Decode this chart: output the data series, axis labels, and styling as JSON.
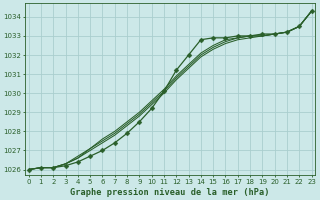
{
  "title": "Graphe pression niveau de la mer (hPa)",
  "background_color": "#cce8e8",
  "grid_color": "#aacece",
  "line_color": "#2a5f2a",
  "xlim": [
    -0.3,
    23.3
  ],
  "ylim": [
    1025.7,
    1034.7
  ],
  "yticks": [
    1026,
    1027,
    1028,
    1029,
    1030,
    1031,
    1032,
    1033,
    1034
  ],
  "xticks": [
    0,
    1,
    2,
    3,
    4,
    5,
    6,
    7,
    8,
    9,
    10,
    11,
    12,
    13,
    14,
    15,
    16,
    17,
    18,
    19,
    20,
    21,
    22,
    23
  ],
  "series": [
    [
      1026.0,
      1026.1,
      1026.1,
      1026.2,
      1026.4,
      1026.7,
      1027.0,
      1027.4,
      1027.9,
      1028.5,
      1029.2,
      1030.1,
      1031.2,
      1032.0,
      1032.8,
      1032.9,
      1032.9,
      1033.0,
      1033.0,
      1033.1,
      1033.1,
      1033.2,
      1033.5,
      1034.3
    ],
    [
      1026.0,
      1026.1,
      1026.1,
      1026.3,
      1026.6,
      1027.0,
      1027.4,
      1027.8,
      1028.3,
      1028.8,
      1029.4,
      1030.0,
      1030.7,
      1031.3,
      1031.9,
      1032.3,
      1032.6,
      1032.8,
      1032.9,
      1033.0,
      1033.1,
      1033.2,
      1033.5,
      1034.3
    ],
    [
      1026.0,
      1026.1,
      1026.1,
      1026.3,
      1026.6,
      1027.1,
      1027.5,
      1027.9,
      1028.4,
      1028.9,
      1029.5,
      1030.1,
      1030.8,
      1031.4,
      1032.0,
      1032.4,
      1032.7,
      1032.9,
      1033.0,
      1033.0,
      1033.1,
      1033.2,
      1033.5,
      1034.3
    ],
    [
      1026.0,
      1026.1,
      1026.1,
      1026.3,
      1026.7,
      1027.1,
      1027.6,
      1028.0,
      1028.5,
      1029.0,
      1029.6,
      1030.2,
      1030.9,
      1031.5,
      1032.1,
      1032.5,
      1032.8,
      1032.9,
      1033.0,
      1033.0,
      1033.1,
      1033.2,
      1033.5,
      1034.3
    ]
  ],
  "marker_series": 0,
  "marker_size": 2.5,
  "linewidth_marker": 0.9,
  "linewidth_plain": 0.75
}
